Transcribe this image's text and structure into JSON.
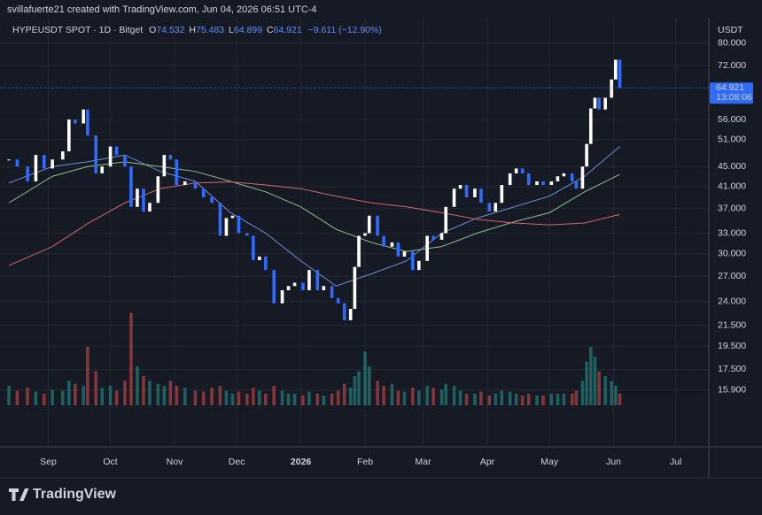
{
  "header": {
    "credit": "svillafuerte21 created with TradingView.com, Jun 04, 2026 06:51 UTC-4",
    "brand": "TradingView"
  },
  "chart_data": {
    "type": "candlestick",
    "legend": {
      "symbol": "HYPEUSDT SPOT · 1D · Bitget",
      "o_key": "O",
      "o": "74.532",
      "h_key": "H",
      "h": "75.483",
      "l_key": "L",
      "l": "64.899",
      "c_key": "C",
      "c": "64.921",
      "change": "−9.611 (−12.90%)"
    },
    "currency": "USDT",
    "last_price": {
      "value": 64.921,
      "label": "64.921",
      "countdown": "13:08:06"
    },
    "log_scale": true,
    "grid": true,
    "up_color": "#ffffff",
    "down_color": "#2f6bff",
    "vol_up_color": "#26a69a",
    "vol_down_color": "#ef5350",
    "xlim": [
      -4.3,
      338
    ],
    "xticks": [
      {
        "value": 19,
        "label": "Sep"
      },
      {
        "value": 49,
        "label": "Oct"
      },
      {
        "value": 80,
        "label": "Nov"
      },
      {
        "value": 110,
        "label": "Dec"
      },
      {
        "value": 141,
        "label": "2026"
      },
      {
        "value": 172,
        "label": "Feb"
      },
      {
        "value": 200,
        "label": "Mar"
      },
      {
        "value": 231,
        "label": "Apr"
      },
      {
        "value": 261,
        "label": "May"
      },
      {
        "value": 292,
        "label": "Jun"
      },
      {
        "value": 322,
        "label": "Jul"
      }
    ],
    "ylim": [
      12.2,
      90
    ],
    "yticks": [
      {
        "value": 80,
        "label": "80.000"
      },
      {
        "value": 72,
        "label": "72.000"
      },
      {
        "value": 56,
        "label": "56.000"
      },
      {
        "value": 51,
        "label": "51.000"
      },
      {
        "value": 45,
        "label": "45.000"
      },
      {
        "value": 41,
        "label": "41.000"
      },
      {
        "value": 37,
        "label": "37.000"
      },
      {
        "value": 33,
        "label": "33.000"
      },
      {
        "value": 30,
        "label": "30.000"
      },
      {
        "value": 27,
        "label": "27.000"
      },
      {
        "value": 24,
        "label": "24.000"
      },
      {
        "value": 21.5,
        "label": "21.500"
      },
      {
        "value": 19.5,
        "label": "19.500"
      },
      {
        "value": 17.5,
        "label": "17.500"
      },
      {
        "value": 15.9,
        "label": "15.900"
      }
    ],
    "x": [
      0,
      4,
      9,
      13,
      17,
      21,
      26,
      29,
      32,
      36,
      38,
      42,
      45,
      49,
      52,
      56,
      59,
      62,
      65,
      68,
      72,
      75,
      78,
      81,
      85,
      90,
      94,
      98,
      102,
      105,
      108,
      111,
      115,
      118,
      121,
      124,
      128,
      132,
      135,
      138,
      142,
      145,
      149,
      152,
      156,
      159,
      162,
      165,
      167,
      169,
      172,
      174,
      178,
      181,
      185,
      188,
      191,
      195,
      198,
      202,
      205,
      209,
      211,
      215,
      218,
      221,
      225,
      228,
      232,
      235,
      238,
      242,
      245,
      248,
      251,
      255,
      258,
      262,
      265,
      268,
      272,
      274,
      277,
      279,
      281,
      283,
      285,
      288,
      291,
      293,
      295
    ],
    "close": [
      46.5,
      45,
      42,
      47.5,
      44.6,
      46.5,
      48.3,
      56,
      55,
      58.7,
      52,
      43.6,
      45,
      49.4,
      47.5,
      45,
      37.3,
      40.6,
      36.5,
      38,
      43,
      47.5,
      46.5,
      41.3,
      42,
      40.6,
      39,
      38,
      32.6,
      35.4,
      35.8,
      33,
      32.6,
      29.1,
      29.6,
      27.8,
      23.8,
      25.3,
      25.8,
      26.2,
      25.3,
      27.8,
      25.3,
      25.8,
      24.4,
      23.8,
      22,
      23.2,
      28.2,
      32.6,
      33,
      35.8,
      32.6,
      31,
      31.6,
      29.6,
      30.3,
      27.8,
      29,
      32.6,
      32,
      33,
      37.3,
      40.6,
      41.3,
      39,
      40.6,
      38,
      36.5,
      38,
      41.3,
      43.6,
      44.6,
      43.6,
      41.3,
      42,
      41.3,
      42,
      43,
      43.6,
      42,
      40.6,
      45,
      50,
      59,
      62,
      58.7,
      62,
      67.5,
      74,
      64.921
    ],
    "vlim": [
      0,
      100
    ],
    "volume": [
      20,
      15,
      18,
      14,
      12,
      16,
      15,
      25,
      22,
      20,
      60,
      35,
      18,
      20,
      15,
      25,
      95,
      40,
      30,
      25,
      22,
      20,
      25,
      20,
      18,
      15,
      14,
      18,
      20,
      15,
      12,
      14,
      12,
      18,
      15,
      12,
      20,
      15,
      12,
      12,
      10,
      14,
      12,
      10,
      12,
      15,
      22,
      18,
      30,
      35,
      55,
      40,
      25,
      20,
      22,
      15,
      14,
      18,
      15,
      20,
      18,
      16,
      22,
      20,
      15,
      12,
      12,
      14,
      10,
      12,
      15,
      14,
      12,
      10,
      12,
      10,
      10,
      12,
      12,
      12,
      12,
      15,
      25,
      45,
      60,
      50,
      35,
      30,
      25,
      20,
      12
    ],
    "series": [
      {
        "color": "#6f8fd6",
        "x": [
          0,
          21,
          38,
          56,
          73,
          90,
          107,
          124,
          141,
          158,
          175,
          192,
          209,
          226,
          244,
          261,
          278,
          295
        ],
        "values": [
          41.7,
          45,
          46,
          47.5,
          44,
          42,
          36.3,
          33,
          29,
          25.8,
          27.3,
          29,
          33,
          35.4,
          37.3,
          39.2,
          43,
          49.4
        ]
      },
      {
        "color": "#8fbf8a",
        "x": [
          0,
          21,
          38,
          56,
          73,
          90,
          107,
          124,
          141,
          158,
          175,
          192,
          209,
          226,
          244,
          261,
          278,
          295
        ],
        "values": [
          38,
          43,
          45,
          46,
          45,
          44,
          42,
          40,
          37.3,
          33.6,
          31.6,
          30.3,
          31,
          33,
          34.8,
          36.3,
          40,
          43.4
        ]
      },
      {
        "color": "#d2676b",
        "x": [
          0,
          21,
          38,
          56,
          73,
          90,
          107,
          124,
          141,
          158,
          175,
          192,
          209,
          226,
          244,
          261,
          278,
          295
        ],
        "values": [
          28.4,
          31,
          34.5,
          38,
          40.6,
          41.7,
          41.9,
          41.3,
          40.6,
          39.2,
          38,
          37.3,
          36.3,
          35.2,
          34.6,
          34.3,
          34.6,
          36
        ]
      }
    ]
  }
}
